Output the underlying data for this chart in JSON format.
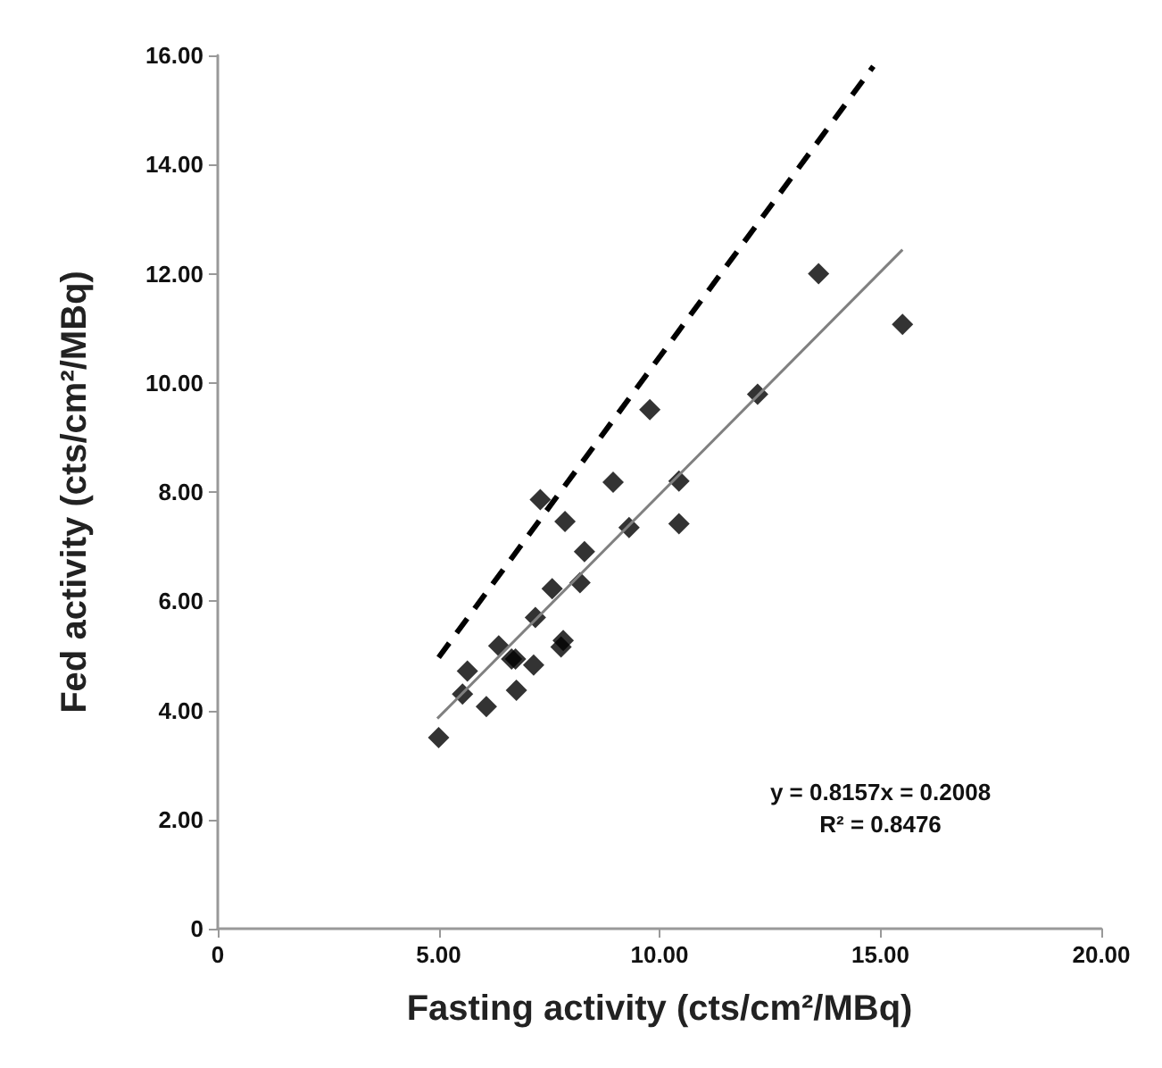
{
  "chart_data": {
    "type": "scatter",
    "xlabel": "Fasting activity (cts/cm²/MBq)",
    "ylabel": "Fed activity (cts/cm²/MBq)",
    "xlim": [
      0,
      20
    ],
    "xticks": [
      0,
      {
        "value": 5,
        "label": "5.00"
      },
      {
        "value": 10,
        "label": "10.00"
      },
      {
        "value": 15,
        "label": "15.00"
      },
      {
        "value": 20,
        "label": "20.00"
      }
    ],
    "ylim": [
      0,
      16
    ],
    "yticks": [
      0,
      {
        "value": 2,
        "label": "2.00"
      },
      {
        "value": 4,
        "label": "4.00"
      },
      {
        "value": 6,
        "label": "6.00"
      },
      {
        "value": 8,
        "label": "8.00"
      },
      {
        "value": 10,
        "label": "10.00"
      },
      {
        "value": 12,
        "label": "12.00"
      },
      {
        "value": 14,
        "label": "14.00"
      },
      {
        "value": 16,
        "label": "16.00"
      }
    ],
    "grid": false,
    "series": [
      {
        "type": "scatter",
        "marker": "diamond",
        "color": "#000000",
        "x": [
          5.0,
          5.54,
          5.65,
          6.08,
          6.36,
          6.65,
          6.74,
          6.76,
          7.15,
          7.19,
          7.3,
          7.57,
          7.77,
          7.82,
          7.86,
          8.2,
          8.3,
          8.95,
          9.31,
          9.78,
          10.44,
          10.44,
          12.22,
          13.6,
          15.5
        ],
        "values": [
          3.5,
          4.3,
          4.72,
          4.07,
          5.18,
          4.94,
          4.94,
          4.37,
          4.83,
          5.7,
          7.86,
          6.23,
          5.16,
          5.28,
          7.46,
          6.34,
          6.91,
          8.18,
          7.35,
          9.51,
          8.2,
          7.42,
          9.79,
          12.0,
          11.07
        ]
      },
      {
        "type": "line",
        "marker": "none",
        "line_style": "solid",
        "color": "#808080",
        "x": [
          4.97,
          15.5
        ],
        "values": [
          3.85,
          12.44
        ]
      },
      {
        "type": "line",
        "marker": "none",
        "line_style": "dashed",
        "color": "#000000",
        "x": [
          5.0,
          14.84
        ],
        "values": [
          4.97,
          15.8
        ]
      }
    ],
    "annotations": [
      "y = 0.8157x = 0.2008",
      "R² = 0.8476"
    ]
  }
}
